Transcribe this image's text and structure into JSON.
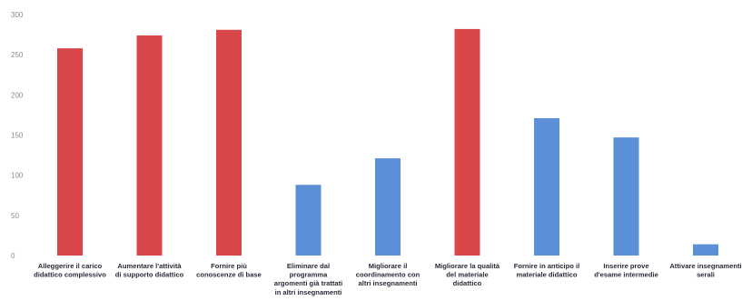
{
  "chart_data": {
    "type": "bar",
    "title": "",
    "xlabel": "",
    "ylabel": "",
    "ylim": [
      0,
      300
    ],
    "yticks": [
      0,
      50,
      100,
      150,
      200,
      250,
      300
    ],
    "grid": false,
    "legend": "none",
    "categories": [
      [
        "Alleggerire il carico",
        "didattico complessivo"
      ],
      [
        "Aumentare l'attività",
        "di supporto didattico"
      ],
      [
        "Fornire più",
        "conoscenze di base"
      ],
      [
        "Eliminare dal",
        "programma",
        "argomenti già trattati",
        "in altri insegnamenti"
      ],
      [
        "Migliorare il",
        "coordinamento con",
        "altri insegnamenti"
      ],
      [
        "Migliorare la qualità",
        "del materiale",
        "didattico"
      ],
      [
        "Fornire in anticipo il",
        "materiale didattico"
      ],
      [
        "Inserire prove",
        "d'esame intermedie"
      ],
      [
        "Attivare insegnamenti",
        "serali"
      ]
    ],
    "values": [
      258,
      274,
      281,
      88,
      121,
      282,
      171,
      147,
      14
    ],
    "colors": [
      "#d9474a",
      "#d9474a",
      "#d9474a",
      "#5b8fd6",
      "#5b8fd6",
      "#d9474a",
      "#5b8fd6",
      "#5b8fd6",
      "#5b8fd6"
    ]
  }
}
